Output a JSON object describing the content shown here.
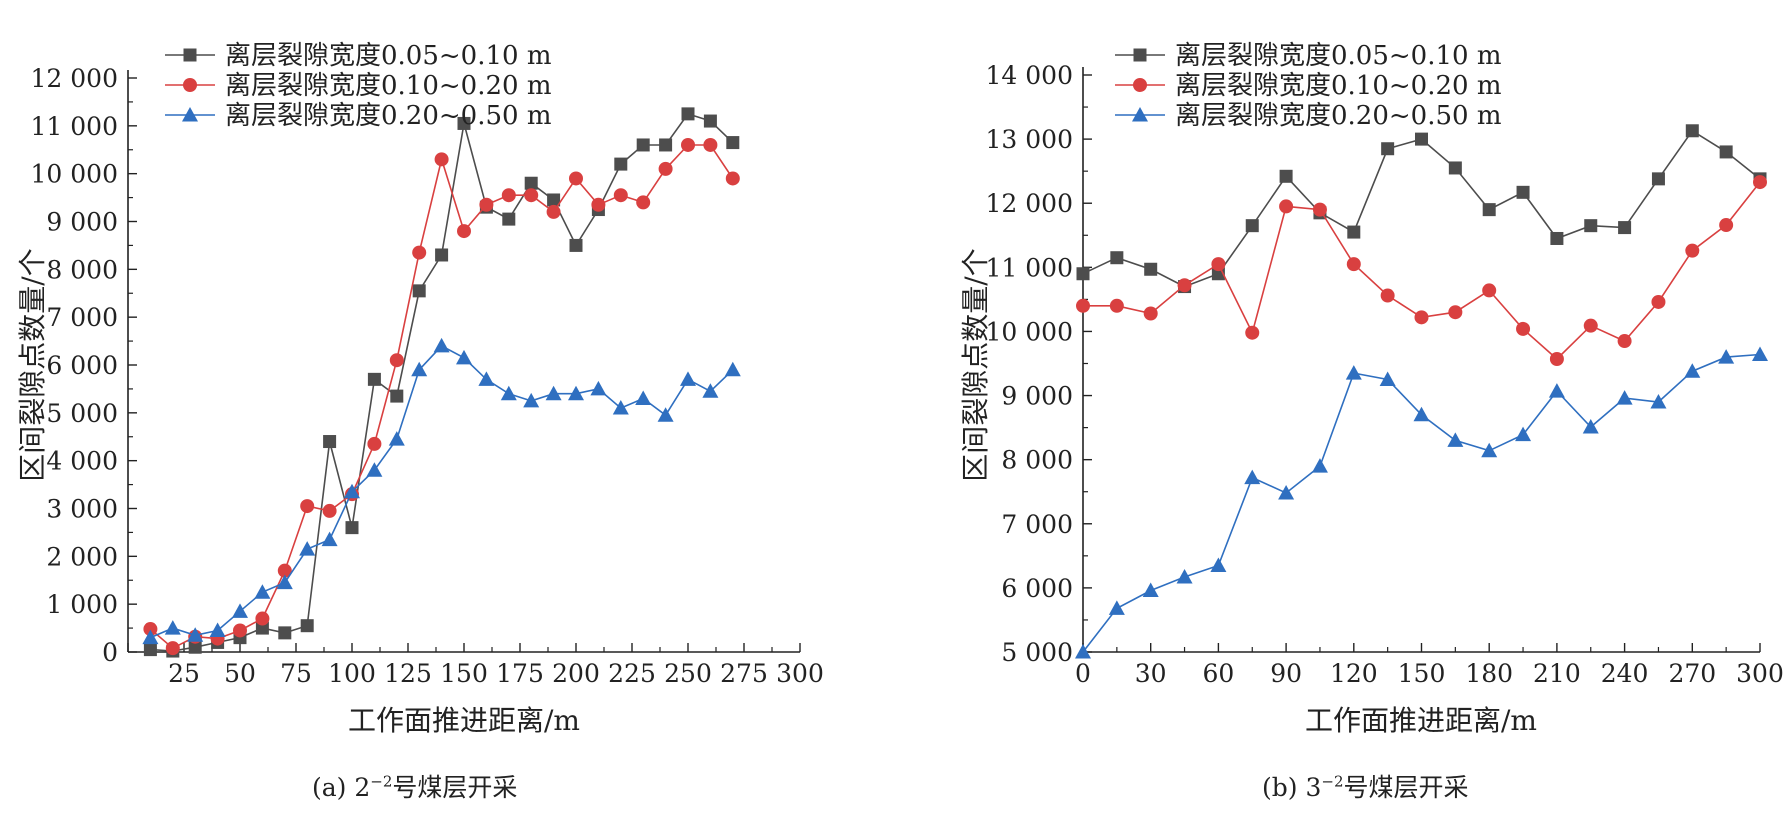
{
  "chart_data": [
    {
      "type": "line",
      "panel": "(a)",
      "caption_prefix": "(a) 2",
      "caption_sup": "−2",
      "caption_suffix": "号煤层开采",
      "xlabel": "工作面推进距离/m",
      "ylabel": "区间裂隙点数量/个",
      "xlim": [
        0,
        300
      ],
      "ylim": [
        0,
        12000
      ],
      "xticks": [
        25,
        50,
        75,
        100,
        125,
        150,
        175,
        200,
        225,
        250,
        275,
        300
      ],
      "yticks": [
        0,
        1000,
        2000,
        3000,
        4000,
        5000,
        6000,
        7000,
        8000,
        9000,
        10000,
        11000,
        12000
      ],
      "ytick_labels": [
        "0",
        "1 000",
        "2 000",
        "3 000",
        "4 000",
        "5 000",
        "6 000",
        "7 000",
        "8 000",
        "9 000",
        "10 000",
        "11 000",
        "12 000"
      ],
      "legend_position": "top-left",
      "series": [
        {
          "name": "离层裂隙宽度0.05~0.10 m",
          "color": "#4d4d4d",
          "marker": "square",
          "x": [
            10,
            20,
            30,
            40,
            50,
            60,
            70,
            80,
            90,
            100,
            110,
            120,
            130,
            140,
            150,
            160,
            170,
            180,
            190,
            200,
            210,
            220,
            230,
            240,
            250,
            260,
            270
          ],
          "y": [
            50,
            20,
            100,
            200,
            300,
            500,
            400,
            550,
            4400,
            2600,
            5700,
            5350,
            7550,
            8300,
            11050,
            9300,
            9050,
            9800,
            9450,
            8500,
            9250,
            10200,
            10600,
            10600,
            11250,
            11100,
            10650
          ]
        },
        {
          "name": "离层裂隙宽度0.10~0.20 m",
          "color": "#d94040",
          "marker": "circle",
          "x": [
            10,
            20,
            30,
            40,
            50,
            60,
            70,
            80,
            90,
            100,
            110,
            120,
            130,
            140,
            150,
            160,
            170,
            180,
            190,
            200,
            210,
            220,
            230,
            240,
            250,
            260,
            270
          ],
          "y": [
            480,
            80,
            320,
            280,
            450,
            700,
            1700,
            3050,
            2950,
            3300,
            4350,
            6100,
            8350,
            10300,
            8800,
            9350,
            9550,
            9550,
            9200,
            9900,
            9350,
            9550,
            9400,
            10100,
            10600,
            10600,
            9900
          ]
        },
        {
          "name": "离层裂隙宽度0.20~0.50 m",
          "color": "#2f6fc0",
          "marker": "triangle",
          "x": [
            10,
            20,
            30,
            40,
            50,
            60,
            70,
            80,
            90,
            100,
            110,
            120,
            130,
            140,
            150,
            160,
            170,
            180,
            190,
            200,
            210,
            220,
            230,
            240,
            250,
            260,
            270
          ],
          "y": [
            300,
            500,
            350,
            450,
            850,
            1250,
            1450,
            2150,
            2350,
            3350,
            3800,
            4450,
            5900,
            6400,
            6150,
            5700,
            5400,
            5250,
            5400,
            5400,
            5500,
            5100,
            5300,
            4950,
            5700,
            5450,
            5900
          ]
        }
      ]
    },
    {
      "type": "line",
      "panel": "(b)",
      "caption_prefix": "(b) 3",
      "caption_sup": "−2",
      "caption_suffix": "号煤层开采",
      "xlabel": "工作面推进距离/m",
      "ylabel": "区间裂隙点数量/个",
      "xlim": [
        0,
        300
      ],
      "ylim": [
        5000,
        14000
      ],
      "xticks": [
        0,
        30,
        60,
        90,
        120,
        150,
        180,
        210,
        240,
        270,
        300
      ],
      "yticks": [
        5000,
        6000,
        7000,
        8000,
        9000,
        10000,
        11000,
        12000,
        13000,
        14000
      ],
      "ytick_labels": [
        "5 000",
        "6 000",
        "7 000",
        "8 000",
        "9 000",
        "10 000",
        "11 000",
        "12 000",
        "13 000",
        "14 000"
      ],
      "legend_position": "top-left",
      "series": [
        {
          "name": "离层裂隙宽度0.05~0.10 m",
          "color": "#4d4d4d",
          "marker": "square",
          "x": [
            0,
            15,
            30,
            45,
            60,
            75,
            90,
            105,
            120,
            135,
            150,
            165,
            180,
            195,
            210,
            225,
            240,
            255,
            270,
            285,
            300
          ],
          "y": [
            10900,
            11150,
            10970,
            10700,
            10900,
            11650,
            12420,
            11850,
            11550,
            12850,
            13000,
            12550,
            11900,
            12170,
            11450,
            11650,
            11620,
            12380,
            13130,
            12800,
            12380
          ]
        },
        {
          "name": "离层裂隙宽度0.10~0.20 m",
          "color": "#d94040",
          "marker": "circle",
          "x": [
            0,
            15,
            30,
            45,
            60,
            75,
            90,
            105,
            120,
            135,
            150,
            165,
            180,
            195,
            210,
            225,
            240,
            255,
            270,
            285,
            300
          ],
          "y": [
            10400,
            10400,
            10280,
            10720,
            11050,
            9980,
            11950,
            11900,
            11050,
            10560,
            10220,
            10300,
            10640,
            10040,
            9570,
            10090,
            9850,
            10460,
            11260,
            11660,
            12330
          ]
        },
        {
          "name": "离层裂隙宽度0.20~0.50 m",
          "color": "#2f6fc0",
          "marker": "triangle",
          "x": [
            0,
            15,
            30,
            45,
            60,
            75,
            90,
            105,
            120,
            135,
            150,
            165,
            180,
            195,
            210,
            225,
            240,
            255,
            270,
            285,
            300
          ],
          "y": [
            5000,
            5680,
            5960,
            6170,
            6350,
            7720,
            7480,
            7900,
            9350,
            9250,
            8700,
            8300,
            8140,
            8390,
            9070,
            8510,
            8960,
            8900,
            9380,
            9600,
            9640
          ]
        }
      ]
    }
  ]
}
